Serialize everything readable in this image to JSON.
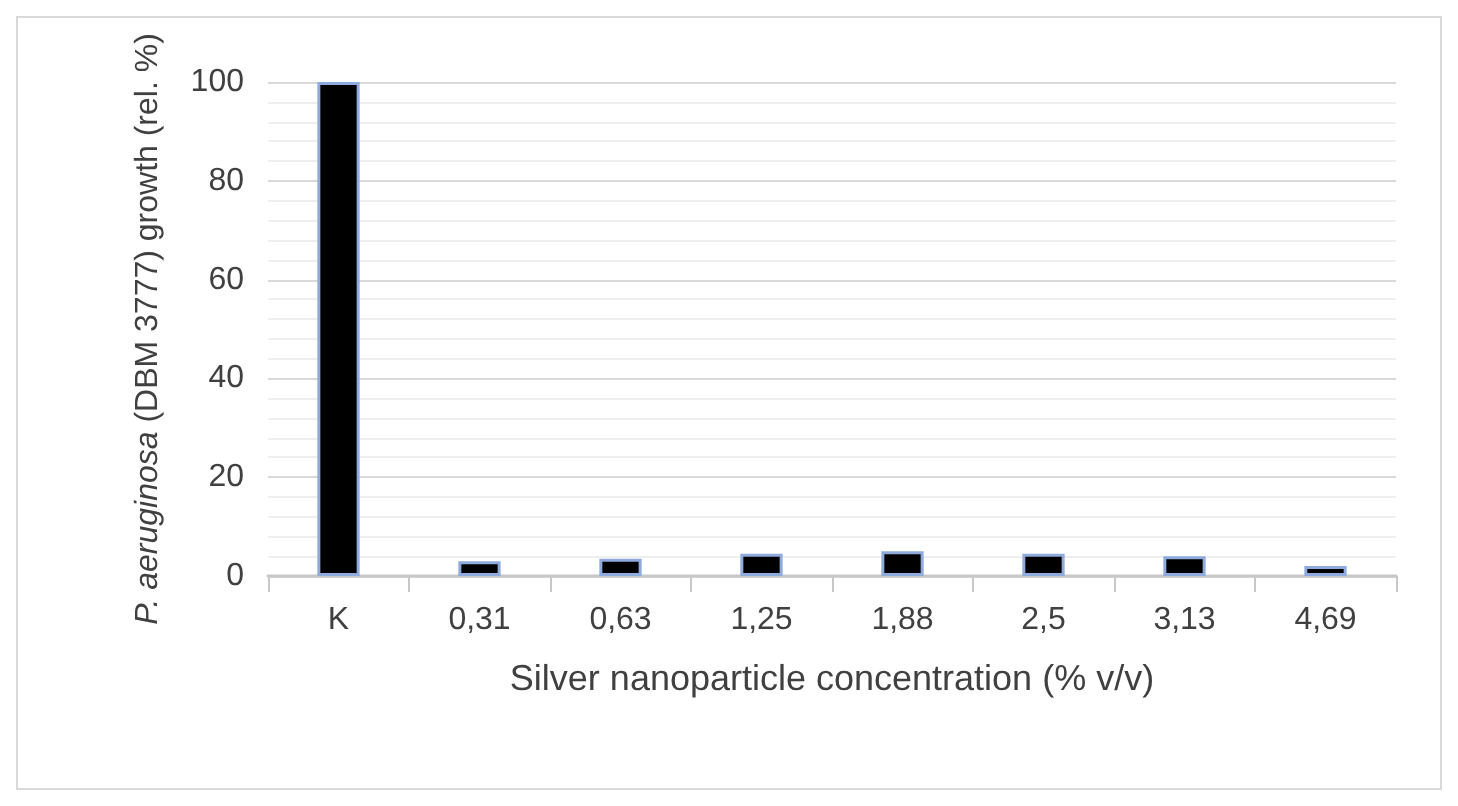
{
  "chart_data": {
    "type": "bar",
    "xlabel": "Silver nanoparticle concentration (% v/v)",
    "ylabel": "P. aeruginosa (DBM 3777) growth (rel. %)",
    "categories": [
      "K",
      "0,31",
      "0,63",
      "1,25",
      "1,88",
      "2,5",
      "3,13",
      "4,69"
    ],
    "values": [
      100,
      3,
      3.5,
      4.5,
      5,
      4.5,
      4,
      2
    ],
    "color": "#000000",
    "ylim": [
      0,
      100
    ],
    "yticks": [
      0,
      20,
      40,
      60,
      80,
      100
    ],
    "grid": "y"
  }
}
